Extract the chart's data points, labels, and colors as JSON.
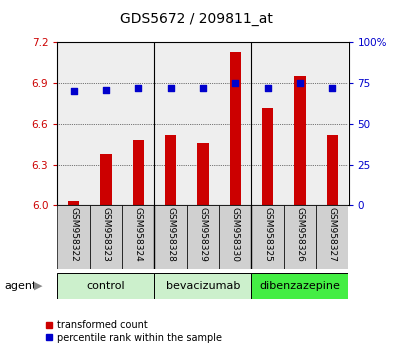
{
  "title": "GDS5672 / 209811_at",
  "categories": [
    "GSM958322",
    "GSM958323",
    "GSM958324",
    "GSM958328",
    "GSM958329",
    "GSM958330",
    "GSM958325",
    "GSM958326",
    "GSM958327"
  ],
  "bar_values": [
    6.03,
    6.38,
    6.48,
    6.52,
    6.46,
    7.13,
    6.72,
    6.95,
    6.52
  ],
  "dot_values": [
    70,
    71,
    72,
    72,
    72,
    75,
    72,
    75,
    72
  ],
  "groups": [
    {
      "label": "control",
      "span": [
        0,
        2
      ],
      "color": "#ccf0cc"
    },
    {
      "label": "bevacizumab",
      "span": [
        3,
        5
      ],
      "color": "#ccf0cc"
    },
    {
      "label": "dibenzazepine",
      "span": [
        6,
        8
      ],
      "color": "#44ee44"
    }
  ],
  "ylim_left": [
    6.0,
    7.2
  ],
  "ylim_right": [
    0,
    100
  ],
  "yticks_left": [
    6.0,
    6.3,
    6.6,
    6.9,
    7.2
  ],
  "yticks_right": [
    0,
    25,
    50,
    75,
    100
  ],
  "bar_color": "#cc0000",
  "dot_color": "#0000cc",
  "bar_bottom": 6.0,
  "agent_label": "agent",
  "legend_bar": "transformed count",
  "legend_dot": "percentile rank within the sample",
  "left_tick_color": "#cc0000",
  "right_tick_color": "#0000cc",
  "group_dividers": [
    2.5,
    5.5
  ]
}
